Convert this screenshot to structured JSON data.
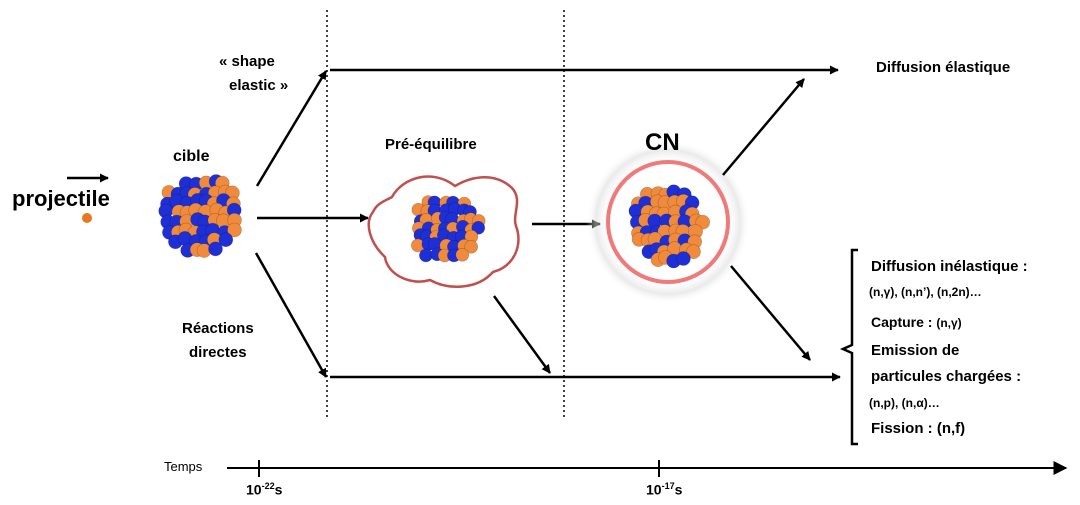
{
  "labels": {
    "projectile": "projectile",
    "cible": "cible",
    "shape_elastic_1": "« shape",
    "shape_elastic_2": "elastic »",
    "reactions_directes_1": "Réactions",
    "reactions_directes_2": "directes",
    "pre_equilibre": "Pré-équilibre",
    "cn": "CN",
    "diffusion_elastique": "Diffusion élastique"
  },
  "outcomes": {
    "inelastic_title": "Diffusion inélastique :",
    "inelastic_channels": "(n,γ), (n,n’), (n,2n)…",
    "capture_label": "Capture :",
    "capture_channel": "(n,γ)",
    "emission_1": "Emission de",
    "emission_2": "particules chargées :",
    "emission_channels": "(n,p), (n,α)…",
    "fission_label": "Fission :",
    "fission_channel": "(n,f)"
  },
  "timeline": {
    "label": "Temps",
    "tick1_base": "10",
    "tick1_exp": "-22",
    "tick1_unit": "s",
    "tick2_base": "10",
    "tick2_exp": "-17",
    "tick2_unit": "s"
  },
  "colors": {
    "proton": "#f08a3c",
    "neutron": "#1f2fd6",
    "preequilibrium_outline": "#c0504d",
    "cn_ring": "#f07a7a",
    "projectile": "#e87722"
  }
}
